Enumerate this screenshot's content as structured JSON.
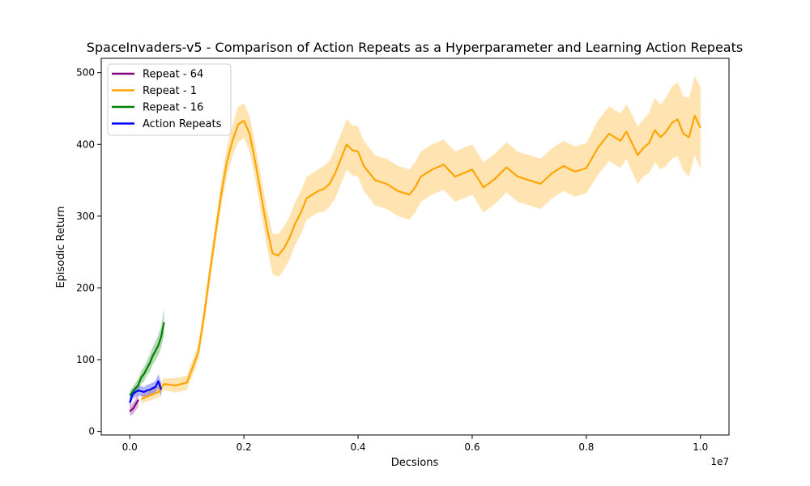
{
  "chart_data": {
    "type": "line",
    "title": "SpaceInvaders-v5 - Comparison of Action Repeats as a Hyperparameter and Learning Action Repeats",
    "xlabel": "Decsions",
    "ylabel": "Episodic Return",
    "x_offset_label": "1e7",
    "xlim": [
      -0.05,
      1.05
    ],
    "ylim": [
      -5,
      520
    ],
    "x_ticks": [
      0.0,
      0.2,
      0.4,
      0.6,
      0.8,
      1.0
    ],
    "x_tick_labels": [
      "0.0",
      "0.2",
      "0.4",
      "0.6",
      "0.8",
      "1.0"
    ],
    "y_ticks": [
      0,
      100,
      200,
      300,
      400,
      500
    ],
    "y_tick_labels": [
      "0",
      "100",
      "200",
      "300",
      "400",
      "500"
    ],
    "grid": false,
    "legend_position": "top-left",
    "series": [
      {
        "name": "Repeat - 64",
        "color": "#800080",
        "x": [
          0.0,
          0.003,
          0.006,
          0.009,
          0.012,
          0.015
        ],
        "y": [
          28,
          30,
          32,
          36,
          40,
          44
        ],
        "band": [
          6,
          7,
          8,
          8,
          9,
          10
        ]
      },
      {
        "name": "Repeat - 1",
        "color": "#FFA500",
        "x": [
          0.02,
          0.05,
          0.06,
          0.08,
          0.1,
          0.12,
          0.13,
          0.14,
          0.15,
          0.16,
          0.17,
          0.18,
          0.19,
          0.2,
          0.21,
          0.22,
          0.23,
          0.24,
          0.25,
          0.26,
          0.27,
          0.28,
          0.29,
          0.3,
          0.31,
          0.32,
          0.33,
          0.34,
          0.35,
          0.36,
          0.37,
          0.38,
          0.39,
          0.4,
          0.41,
          0.42,
          0.43,
          0.45,
          0.47,
          0.49,
          0.5,
          0.51,
          0.53,
          0.55,
          0.57,
          0.6,
          0.62,
          0.64,
          0.66,
          0.68,
          0.7,
          0.72,
          0.74,
          0.76,
          0.78,
          0.8,
          0.82,
          0.84,
          0.86,
          0.87,
          0.88,
          0.89,
          0.9,
          0.91,
          0.92,
          0.93,
          0.94,
          0.95,
          0.96,
          0.97,
          0.98,
          0.99,
          1.0
        ],
        "y": [
          45,
          55,
          66,
          64,
          68,
          110,
          160,
          220,
          275,
          330,
          375,
          405,
          428,
          433,
          415,
          375,
          330,
          285,
          248,
          245,
          255,
          270,
          290,
          305,
          325,
          330,
          335,
          338,
          345,
          360,
          380,
          400,
          392,
          390,
          370,
          360,
          350,
          345,
          335,
          330,
          340,
          355,
          365,
          372,
          355,
          365,
          340,
          352,
          368,
          355,
          350,
          345,
          360,
          370,
          362,
          367,
          395,
          415,
          405,
          418,
          402,
          385,
          395,
          402,
          420,
          410,
          418,
          430,
          435,
          415,
          410,
          440,
          423
        ],
        "band": [
          6,
          8,
          8,
          10,
          10,
          12,
          14,
          15,
          15,
          18,
          20,
          22,
          25,
          24,
          25,
          24,
          25,
          26,
          28,
          30,
          30,
          30,
          30,
          30,
          30,
          30,
          30,
          32,
          32,
          35,
          35,
          35,
          35,
          35,
          35,
          35,
          35,
          35,
          35,
          35,
          35,
          35,
          35,
          35,
          35,
          35,
          35,
          35,
          35,
          35,
          35,
          35,
          35,
          35,
          35,
          35,
          38,
          38,
          38,
          38,
          40,
          40,
          40,
          42,
          45,
          45,
          48,
          50,
          52,
          52,
          55,
          55,
          57
        ]
      },
      {
        "name": "Repeat - 16",
        "color": "#008000",
        "x": [
          0.0,
          0.005,
          0.01,
          0.015,
          0.02,
          0.025,
          0.03,
          0.035,
          0.04,
          0.045,
          0.05,
          0.055,
          0.06
        ],
        "y": [
          50,
          55,
          60,
          65,
          75,
          80,
          88,
          95,
          105,
          112,
          120,
          132,
          152
        ],
        "band": [
          6,
          7,
          8,
          8,
          9,
          10,
          10,
          12,
          12,
          13,
          14,
          15,
          18
        ]
      },
      {
        "name": "Action Repeats",
        "color": "#0000FF",
        "x": [
          0.0,
          0.005,
          0.01,
          0.015,
          0.02,
          0.025,
          0.03,
          0.035,
          0.04,
          0.045,
          0.05,
          0.055
        ],
        "y": [
          40,
          52,
          55,
          57,
          56,
          55,
          57,
          58,
          60,
          62,
          70,
          58
        ],
        "band": [
          8,
          7,
          7,
          7,
          7,
          7,
          8,
          8,
          8,
          8,
          10,
          10
        ]
      }
    ]
  }
}
